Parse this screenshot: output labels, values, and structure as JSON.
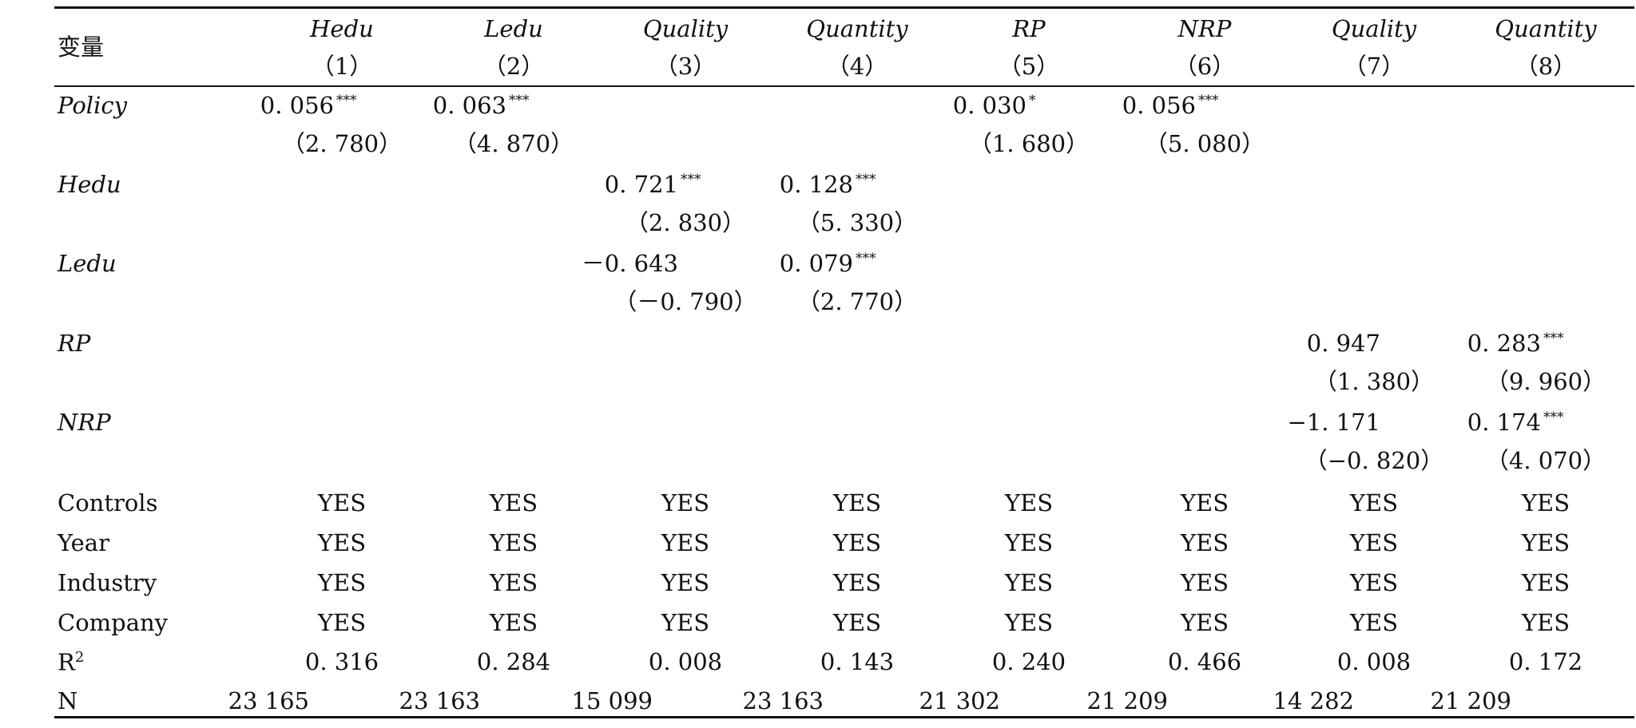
{
  "table": {
    "var_header": "变量",
    "columns": [
      {
        "name": "Hedu",
        "num": "（1）"
      },
      {
        "name": "Ledu",
        "num": "（2）"
      },
      {
        "name": "Quality",
        "num": "（3）"
      },
      {
        "name": "Quantity",
        "num": "（4）"
      },
      {
        "name": "RP",
        "num": "（5）"
      },
      {
        "name": "NRP",
        "num": "（6）"
      },
      {
        "name": "Quality",
        "num": "（7）"
      },
      {
        "name": "Quantity",
        "num": "（8）"
      }
    ],
    "coef_rows": [
      {
        "label": "Policy",
        "italic": true,
        "coef": [
          "0. 056",
          "0. 063",
          "",
          "",
          "0. 030",
          "0. 056",
          "",
          ""
        ],
        "stars": [
          "***",
          "***",
          "",
          "",
          "*",
          "***",
          "",
          ""
        ],
        "tstat": [
          "（2. 780）",
          "（4. 870）",
          "",
          "",
          "（1. 680）",
          "（5. 080）",
          "",
          ""
        ]
      },
      {
        "label": "Hedu",
        "italic": true,
        "coef": [
          "",
          "",
          "0. 721",
          "0. 128",
          "",
          "",
          "",
          ""
        ],
        "stars": [
          "",
          "",
          "***",
          "***",
          "",
          "",
          "",
          ""
        ],
        "tstat": [
          "",
          "",
          "（2. 830）",
          "（5. 330）",
          "",
          "",
          "",
          ""
        ]
      },
      {
        "label": "Ledu",
        "italic": true,
        "coef": [
          "",
          "",
          "－0. 643",
          "0. 079",
          "",
          "",
          "",
          ""
        ],
        "stars": [
          "",
          "",
          "",
          "***",
          "",
          "",
          "",
          ""
        ],
        "tstat": [
          "",
          "",
          "（－0. 790）",
          "（2. 770）",
          "",
          "",
          "",
          ""
        ]
      },
      {
        "label": "RP",
        "italic": true,
        "coef": [
          "",
          "",
          "",
          "",
          "",
          "",
          "0. 947",
          "0. 283"
        ],
        "stars": [
          "",
          "",
          "",
          "",
          "",
          "",
          "",
          "***"
        ],
        "tstat": [
          "",
          "",
          "",
          "",
          "",
          "",
          "（1. 380）",
          "（9. 960）"
        ]
      },
      {
        "label": "NRP",
        "italic": true,
        "coef": [
          "",
          "",
          "",
          "",
          "",
          "",
          "−1. 171",
          "0. 174"
        ],
        "stars": [
          "",
          "",
          "",
          "",
          "",
          "",
          "",
          "***"
        ],
        "tstat": [
          "",
          "",
          "",
          "",
          "",
          "",
          "（−0. 820）",
          "（4. 070）"
        ]
      }
    ],
    "control_rows": [
      {
        "label": "Controls",
        "values": [
          "YES",
          "YES",
          "YES",
          "YES",
          "YES",
          "YES",
          "YES",
          "YES"
        ]
      },
      {
        "label": "Year",
        "values": [
          "YES",
          "YES",
          "YES",
          "YES",
          "YES",
          "YES",
          "YES",
          "YES"
        ]
      },
      {
        "label": "Industry",
        "values": [
          "YES",
          "YES",
          "YES",
          "YES",
          "YES",
          "YES",
          "YES",
          "YES"
        ]
      },
      {
        "label": "Company",
        "values": [
          "YES",
          "YES",
          "YES",
          "YES",
          "YES",
          "YES",
          "YES",
          "YES"
        ]
      }
    ],
    "r2_row": {
      "label": "R",
      "sup": "2",
      "values": [
        "0. 316",
        "0. 284",
        "0. 008",
        "0. 143",
        "0. 240",
        "0. 466",
        "0. 008",
        "0. 172"
      ]
    },
    "n_row": {
      "label": "N",
      "values": [
        "23 165",
        "23 163",
        "15 099",
        "23 163",
        "21 302",
        "21 209",
        "14 282",
        "21 209"
      ]
    }
  }
}
